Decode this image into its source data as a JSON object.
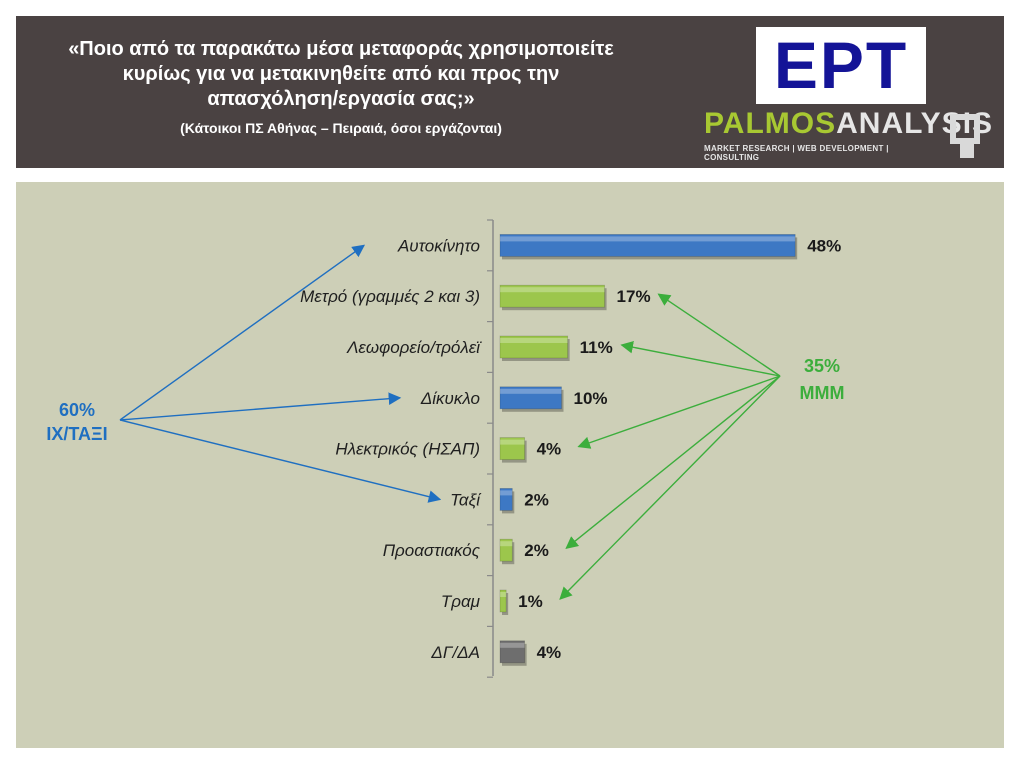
{
  "header": {
    "title_lines": [
      "«Ποιο από τα παρακάτω μέσα μεταφοράς χρησιμοποιείτε",
      "κυρίως για να μετακινηθείτε από και προς την",
      "απασχόληση/εργασία σας;»"
    ],
    "subtitle": "(Κάτοικοι ΠΣ Αθήνας – Πειραιά, όσοι εργάζονται)"
  },
  "logos": {
    "ert": "ΕΡΤ",
    "palmos_part1": "PALMOS",
    "palmos_part2": "ANALYSIS",
    "palmos_tagline": "MARKET RESEARCH | WEB DEVELOPMENT | CONSULTING"
  },
  "chart_data": {
    "type": "bar",
    "orientation": "horizontal",
    "categories": [
      "Αυτοκίνητο",
      "Μετρό (γραμμές 2 και 3)",
      "Λεωφορείο/τρόλεϊ",
      "Δίκυκλο",
      "Ηλεκτρικός (ΗΣΑΠ)",
      "Ταξί",
      "Προαστιακός",
      "Τραμ",
      "ΔΓ/ΔΑ"
    ],
    "values": [
      48,
      17,
      11,
      10,
      4,
      2,
      2,
      1,
      4
    ],
    "value_labels": [
      "48%",
      "17%",
      "11%",
      "10%",
      "4%",
      "2%",
      "2%",
      "1%",
      "4%"
    ],
    "bar_groups": [
      "car_taxi",
      "public",
      "public",
      "car_taxi",
      "public",
      "car_taxi",
      "public",
      "public",
      "no_answer"
    ],
    "colors": {
      "car_taxi": "#3d78c4",
      "public": "#9cc64c",
      "no_answer": "#6e6e6e"
    },
    "annotations": [
      {
        "id": "group-left",
        "lines": [
          "60%",
          "ΙΧ/ΤΑΞΙ"
        ],
        "color": "#1f6fc1",
        "targets": [
          0,
          3,
          5
        ]
      },
      {
        "id": "group-right",
        "lines": [
          "35%",
          "ΜΜΜ"
        ],
        "color": "#3cae3c",
        "targets": [
          1,
          2,
          4,
          6,
          7
        ]
      }
    ]
  }
}
